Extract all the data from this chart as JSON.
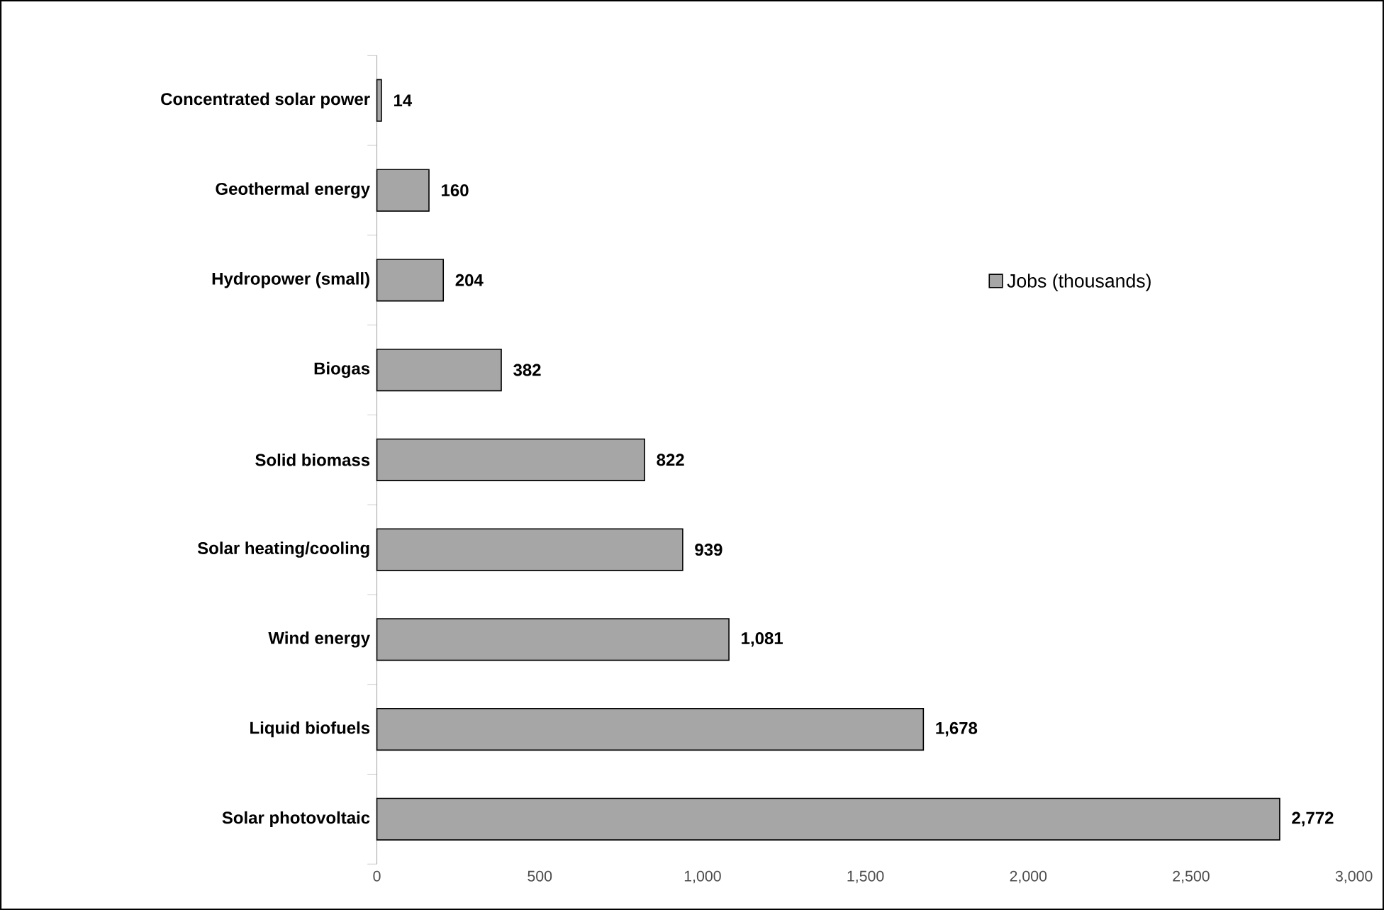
{
  "chart_data": {
    "type": "bar",
    "orientation": "horizontal",
    "categories": [
      "Concentrated solar power",
      "Geothermal energy",
      "Hydropower (small)",
      "Biogas",
      "Solid biomass",
      "Solar heating/cooling",
      "Wind energy",
      "Liquid biofuels",
      "Solar photovoltaic"
    ],
    "series": [
      {
        "name": "Jobs (thousands)",
        "color": "#a6a6a6",
        "values": [
          14,
          160,
          204,
          382,
          822,
          939,
          1081,
          1678,
          2772
        ],
        "value_labels": [
          "14",
          "160",
          "204",
          "382",
          "822",
          "939",
          "1,081",
          "1,678",
          "2,772"
        ]
      }
    ],
    "xlim": [
      0,
      3000
    ],
    "xticks": [
      0,
      500,
      {
        "value": 1000,
        "label": "1,000"
      },
      {
        "value": 1500,
        "label": "1,500"
      },
      {
        "value": 2000,
        "label": "2,000"
      },
      {
        "value": 2500,
        "label": "2,500"
      },
      {
        "value": 3000,
        "label": "3,000"
      }
    ],
    "legend": "right",
    "grid": false
  }
}
